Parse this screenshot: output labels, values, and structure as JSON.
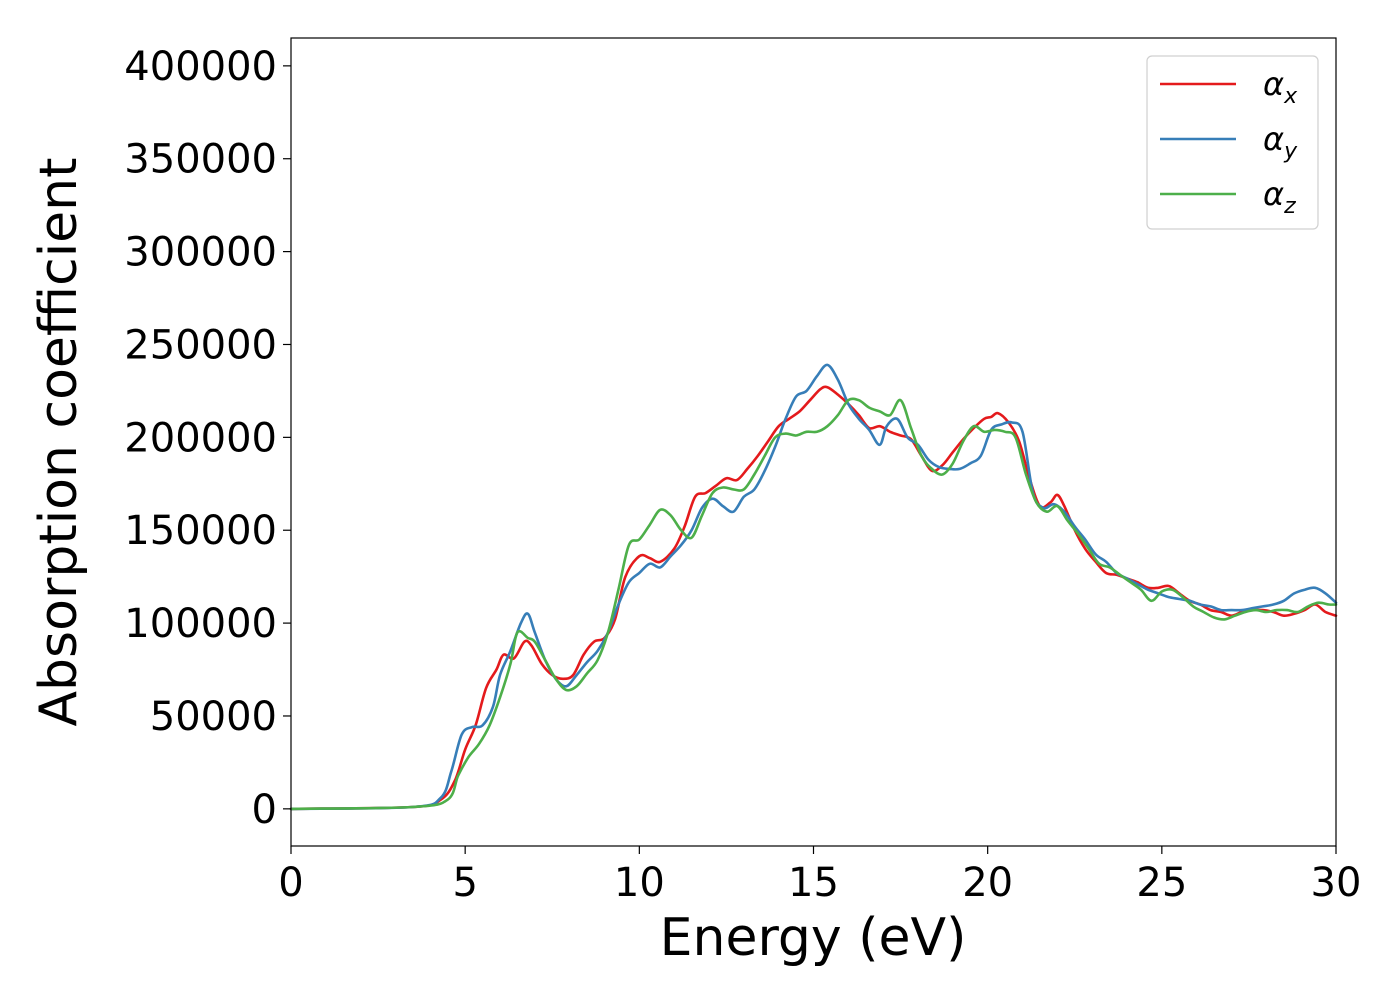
{
  "chart_data": {
    "type": "line",
    "xlabel": "Energy (eV)",
    "ylabel": "Absorption coefficient",
    "xlim": [
      0,
      30
    ],
    "ylim": [
      -20000,
      415000
    ],
    "xticks": [
      0,
      5,
      10,
      15,
      20,
      25,
      30
    ],
    "xtick_labels": [
      "0",
      "5",
      "10",
      "15",
      "20",
      "25",
      "30"
    ],
    "yticks": [
      0,
      50000,
      100000,
      150000,
      200000,
      250000,
      300000,
      350000,
      400000
    ],
    "ytick_labels": [
      "0",
      "50000",
      "100000",
      "150000",
      "200000",
      "250000",
      "300000",
      "350000",
      "400000"
    ],
    "grid": false,
    "legend_position": "top-right",
    "series": [
      {
        "name": "αx",
        "symbol": "α",
        "subscript": "x",
        "color": "#e41a1c",
        "x": [
          0,
          3.5,
          4.3,
          4.7,
          5.0,
          5.3,
          5.6,
          5.9,
          6.1,
          6.4,
          6.7,
          6.9,
          7.2,
          7.5,
          7.8,
          8.1,
          8.4,
          8.7,
          9.0,
          9.3,
          9.6,
          10.0,
          10.3,
          10.6,
          11.0,
          11.3,
          11.6,
          11.9,
          12.2,
          12.5,
          12.8,
          13.1,
          13.4,
          13.7,
          14.0,
          14.3,
          14.6,
          14.9,
          15.2,
          15.4,
          15.7,
          16.0,
          16.3,
          16.6,
          16.9,
          17.2,
          17.5,
          17.8,
          18.1,
          18.4,
          18.7,
          19.0,
          19.3,
          19.6,
          19.9,
          20.1,
          20.3,
          20.6,
          20.9,
          21.2,
          21.5,
          21.8,
          22.0,
          22.2,
          22.5,
          22.8,
          23.1,
          23.4,
          23.7,
          24.0,
          24.3,
          24.6,
          24.9,
          25.2,
          25.5,
          25.8,
          26.1,
          26.4,
          26.7,
          27.0,
          27.3,
          27.6,
          27.9,
          28.2,
          28.5,
          28.8,
          29.1,
          29.4,
          29.7,
          30.0
        ],
        "y": [
          0,
          1000,
          5000,
          15000,
          32000,
          45000,
          65000,
          75000,
          83000,
          81000,
          90000,
          88000,
          78000,
          72000,
          70000,
          72000,
          83000,
          90000,
          92000,
          102000,
          125000,
          136000,
          135000,
          133000,
          140000,
          152000,
          168000,
          170000,
          174000,
          178000,
          177000,
          183000,
          190000,
          198000,
          206000,
          210000,
          214000,
          220000,
          226000,
          227000,
          223000,
          218000,
          212000,
          205000,
          206000,
          203000,
          201000,
          199000,
          190000,
          182000,
          185000,
          192000,
          199000,
          205000,
          210000,
          211000,
          213000,
          208000,
          198000,
          178000,
          163000,
          165000,
          169000,
          163000,
          150000,
          140000,
          133000,
          127000,
          126000,
          124000,
          122000,
          119000,
          119000,
          120000,
          116000,
          112000,
          110000,
          107000,
          106000,
          104000,
          106000,
          107000,
          107000,
          106000,
          104000,
          105000,
          107000,
          110000,
          106000,
          104000
        ]
      },
      {
        "name": "αy",
        "symbol": "α",
        "subscript": "y",
        "color": "#377eb8",
        "x": [
          0,
          3.5,
          4.3,
          4.6,
          4.9,
          5.2,
          5.5,
          5.8,
          6.0,
          6.3,
          6.6,
          6.8,
          7.0,
          7.3,
          7.6,
          7.9,
          8.2,
          8.5,
          8.8,
          9.1,
          9.4,
          9.7,
          10.0,
          10.3,
          10.6,
          10.9,
          11.2,
          11.5,
          11.8,
          12.1,
          12.4,
          12.7,
          13.0,
          13.3,
          13.6,
          13.9,
          14.2,
          14.5,
          14.8,
          15.1,
          15.4,
          15.7,
          16.0,
          16.3,
          16.6,
          16.9,
          17.1,
          17.4,
          17.7,
          18.0,
          18.3,
          18.6,
          18.9,
          19.2,
          19.5,
          19.8,
          20.1,
          20.4,
          20.7,
          21.0,
          21.3,
          21.6,
          21.9,
          22.2,
          22.5,
          22.8,
          23.1,
          23.4,
          23.7,
          24.0,
          24.3,
          24.6,
          24.9,
          25.2,
          25.5,
          25.8,
          26.1,
          26.4,
          26.7,
          27.0,
          27.3,
          27.6,
          27.9,
          28.2,
          28.5,
          28.8,
          29.1,
          29.4,
          29.7,
          30.0
        ],
        "y": [
          0,
          1000,
          6000,
          20000,
          40000,
          44000,
          45000,
          55000,
          72000,
          85000,
          100000,
          105000,
          95000,
          80000,
          70000,
          66000,
          72000,
          79000,
          85000,
          95000,
          110000,
          122000,
          127000,
          132000,
          130000,
          136000,
          142000,
          150000,
          162000,
          167000,
          163000,
          160000,
          168000,
          172000,
          182000,
          195000,
          210000,
          222000,
          225000,
          233000,
          239000,
          231000,
          218000,
          210000,
          204000,
          196000,
          206000,
          210000,
          200000,
          196000,
          188000,
          184000,
          183000,
          183000,
          186000,
          190000,
          204000,
          207000,
          208000,
          203000,
          170000,
          162000,
          164000,
          160000,
          152000,
          145000,
          137000,
          133000,
          127000,
          124000,
          121000,
          118000,
          116000,
          114000,
          113000,
          112000,
          110000,
          109000,
          107000,
          107000,
          107000,
          108000,
          109000,
          110000,
          112000,
          116000,
          118000,
          119000,
          116000,
          111000
        ]
      },
      {
        "name": "αz",
        "symbol": "α",
        "subscript": "z",
        "color": "#4daf4a",
        "x": [
          0,
          3.5,
          4.5,
          4.8,
          5.1,
          5.4,
          5.7,
          6.0,
          6.3,
          6.5,
          6.8,
          7.0,
          7.3,
          7.6,
          7.9,
          8.2,
          8.5,
          8.8,
          9.1,
          9.4,
          9.7,
          10.0,
          10.3,
          10.6,
          10.9,
          11.2,
          11.5,
          11.8,
          12.1,
          12.4,
          12.7,
          13.0,
          13.3,
          13.6,
          13.9,
          14.2,
          14.5,
          14.8,
          15.1,
          15.4,
          15.7,
          16.0,
          16.3,
          16.6,
          16.9,
          17.2,
          17.5,
          17.8,
          18.1,
          18.4,
          18.7,
          19.0,
          19.3,
          19.6,
          19.9,
          20.2,
          20.5,
          20.8,
          21.1,
          21.4,
          21.7,
          22.0,
          22.3,
          22.6,
          22.9,
          23.2,
          23.5,
          23.8,
          24.1,
          24.4,
          24.7,
          25.0,
          25.3,
          25.6,
          25.9,
          26.2,
          26.5,
          26.8,
          27.1,
          27.4,
          27.7,
          28.0,
          28.3,
          28.6,
          28.9,
          29.2,
          29.5,
          29.8,
          30.0
        ],
        "y": [
          0,
          1000,
          5000,
          18000,
          28000,
          35000,
          45000,
          60000,
          78000,
          95000,
          92000,
          90000,
          80000,
          70000,
          64000,
          66000,
          73000,
          80000,
          95000,
          118000,
          142000,
          145000,
          153000,
          161000,
          158000,
          150000,
          146000,
          158000,
          170000,
          173000,
          172000,
          172000,
          180000,
          190000,
          200000,
          202000,
          201000,
          203000,
          203000,
          206000,
          212000,
          220000,
          220000,
          216000,
          214000,
          212000,
          220000,
          205000,
          190000,
          183000,
          180000,
          186000,
          198000,
          206000,
          203000,
          204000,
          203000,
          200000,
          180000,
          165000,
          160000,
          163000,
          155000,
          148000,
          140000,
          132000,
          130000,
          126000,
          122000,
          118000,
          112000,
          117000,
          118000,
          114000,
          109000,
          106000,
          103000,
          102000,
          104000,
          106000,
          107000,
          106000,
          107000,
          107000,
          106000,
          109000,
          111000,
          110000,
          110000
        ]
      }
    ]
  }
}
